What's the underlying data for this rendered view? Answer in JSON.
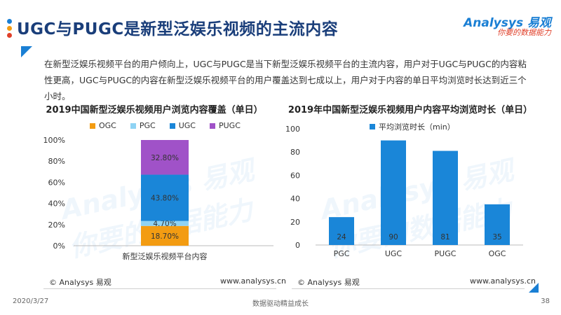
{
  "header": {
    "title": "UGC与PUGC是新型泛娱乐视频的主流内容",
    "logo_text": "Analysys 易观",
    "logo_slogan": "你要的数据能力",
    "dot_colors": [
      "#1a7fd4",
      "#f39c12",
      "#e0402a"
    ]
  },
  "intro": {
    "text": "在新型泛娱乐视频平台的用户倾向上，UGC与PUGC是当下新型泛娱乐视频平台的主流内容，用户对于UGC与PUGC的内容粘性更高，UGC与PUGC的内容在新型泛娱乐视频平台的用户覆盖达到七成以上，用户对于内容的单日平均浏览时长达到近三个小时。"
  },
  "watermark": {
    "line1": "Analysys 易观",
    "line2": "你要的数据能力"
  },
  "chart_data": [
    {
      "type": "bar",
      "stacked": true,
      "title": "2019中国新型泛娱乐视频用户浏览内容覆盖（单日）",
      "categories": [
        "新型泛娱乐视频平台内容"
      ],
      "series": [
        {
          "name": "OGC",
          "values": [
            18.7
          ],
          "label": "18.70%",
          "color": "#f39c12"
        },
        {
          "name": "PGC",
          "values": [
            4.7
          ],
          "label": "4.70%",
          "color": "#8fd3f4"
        },
        {
          "name": "UGC",
          "values": [
            43.8
          ],
          "label": "43.80%",
          "color": "#1a86d8"
        },
        {
          "name": "PUGC",
          "values": [
            32.8
          ],
          "label": "32.80%",
          "color": "#a052c8"
        }
      ],
      "ylim": [
        0,
        100
      ],
      "yticks": [
        "0%",
        "20%",
        "40%",
        "60%",
        "80%",
        "100%"
      ],
      "legend_position": "top",
      "grid": false
    },
    {
      "type": "bar",
      "title": "2019年中国新型泛娱乐视频用户内容平均浏览时长（单日）",
      "categories": [
        "PGC",
        "UGC",
        "PUGC",
        "OGC"
      ],
      "series": [
        {
          "name": "平均浏览时长（min）",
          "values": [
            24,
            90,
            81,
            35
          ],
          "color": "#1a86d8"
        }
      ],
      "ylim": [
        0,
        100
      ],
      "yticks": [
        "0",
        "20",
        "40",
        "60",
        "80",
        "100"
      ],
      "legend_position": "top",
      "grid": false
    }
  ],
  "footer": {
    "left_copyright": "© Analysys 易观",
    "left_url": "www.analysys.cn",
    "right_copyright": "© Analysys 易观",
    "right_url": "www.analysys.cn",
    "date": "2020/3/27",
    "slogan": "数据驱动精益成长",
    "page_number": "38"
  }
}
